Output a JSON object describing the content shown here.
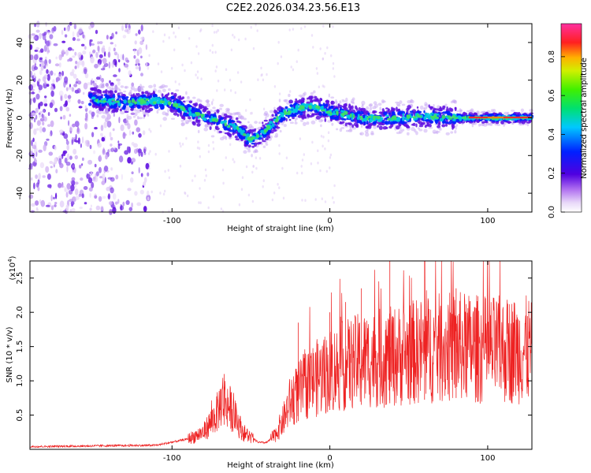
{
  "title": "C2E2.2026.034.23.56.E13",
  "chart_data": [
    {
      "type": "heatmap",
      "name": "spectrogram",
      "xlabel": "Height of straight line (km)",
      "ylabel": "Frequency (Hz)",
      "xlim": [
        -190,
        128
      ],
      "ylim": [
        -50,
        50
      ],
      "xticks": [
        -100,
        0,
        100
      ],
      "yticks": [
        -40,
        -20,
        0,
        20,
        40
      ],
      "colorbar": {
        "label": "Normalized spectral amplitude",
        "range": [
          0,
          0.97
        ],
        "ticks": [
          0.0,
          0.2,
          0.4,
          0.6,
          0.8
        ]
      },
      "ridge": {
        "x": [
          -150,
          -130,
          -115,
          -100,
          -85,
          -70,
          -60,
          -50,
          -40,
          -30,
          -20,
          -10,
          0,
          10,
          20,
          40,
          60,
          80,
          100,
          128
        ],
        "y": [
          10,
          8,
          9,
          8,
          2,
          -2,
          -5,
          -12,
          -6,
          2,
          5,
          6,
          3,
          2,
          0,
          0,
          1,
          0,
          0,
          0
        ]
      },
      "noise_region": [
        -190,
        -115
      ]
    },
    {
      "type": "line",
      "name": "snr",
      "xlabel": "Height of straight line (km)",
      "ylabel": "SNR (10 * v/v)",
      "scale_label": "(x10",
      "scale_exp": "4",
      "scale_close": ")",
      "xlim": [
        -190,
        128
      ],
      "ylim": [
        0,
        2.75
      ],
      "xticks": [
        -100,
        0,
        100
      ],
      "yticks": [
        0.5,
        1.0,
        1.5,
        2.0,
        2.5
      ],
      "color": "#ee2222",
      "envelope": {
        "x": [
          -190,
          -110,
          -90,
          -80,
          -72,
          -68,
          -63,
          -55,
          -45,
          -40,
          -35,
          -30,
          -25,
          -15,
          0,
          20,
          40,
          60,
          80,
          100,
          128
        ],
        "y": [
          0.04,
          0.06,
          0.15,
          0.25,
          0.5,
          0.75,
          0.6,
          0.25,
          0.1,
          0.1,
          0.2,
          0.4,
          0.7,
          0.95,
          1.15,
          1.3,
          1.35,
          1.45,
          1.5,
          1.45,
          1.45
        ]
      },
      "spikes": [
        {
          "x": -67,
          "y": 1.1
        },
        {
          "x": -20,
          "y": 1.85
        },
        {
          "x": 0,
          "y": 2.0
        },
        {
          "x": 10,
          "y": 2.15
        },
        {
          "x": 20,
          "y": 2.35
        },
        {
          "x": 38,
          "y": 2.75
        },
        {
          "x": 60,
          "y": 2.75
        },
        {
          "x": 80,
          "y": 2.35
        }
      ]
    }
  ]
}
